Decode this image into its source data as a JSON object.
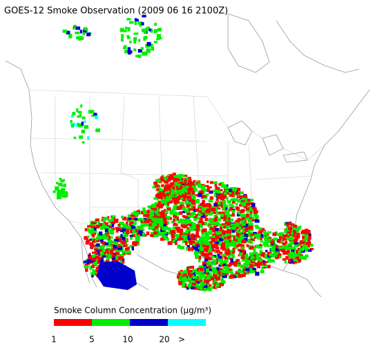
{
  "title": "GOES-12 Smoke Observation (2009 06 16  2100Z)",
  "legend": {
    "title": "Smoke Column Concentration (μg/m³)",
    "colors": [
      "#ff0000",
      "#00ee00",
      "#0000cc",
      "#00ffff"
    ],
    "labels": [
      "1",
      "5",
      "10",
      "20",
      ">"
    ]
  }
}
